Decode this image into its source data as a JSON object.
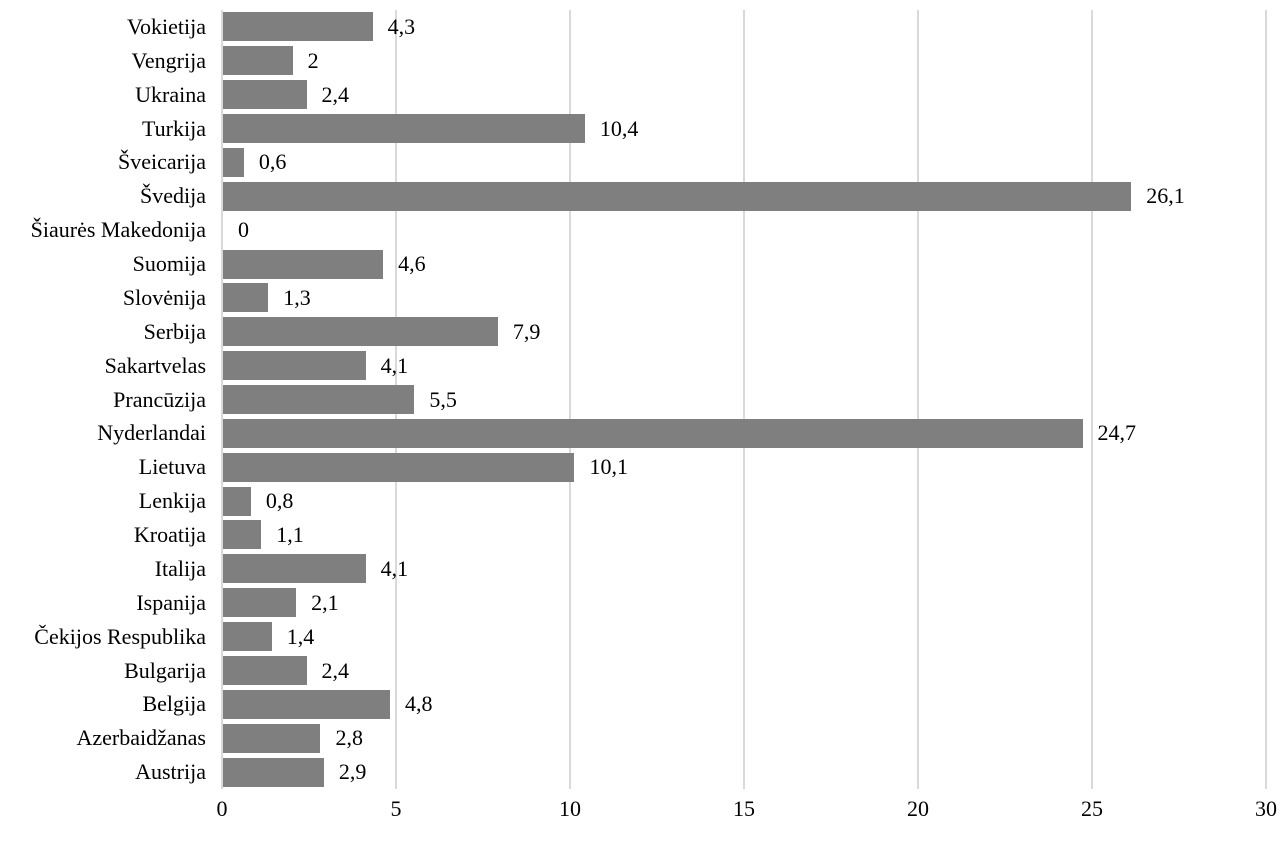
{
  "chart_data": {
    "type": "bar",
    "orientation": "horizontal",
    "title": "",
    "xlabel": "",
    "ylabel": "",
    "categories": [
      "Vokietija",
      "Vengrija",
      "Ukraina",
      "Turkija",
      "Šveicarija",
      "Švedija",
      "Šiaurės Makedonija",
      "Suomija",
      "Slovėnija",
      "Serbija",
      "Sakartvelas",
      "Prancūzija",
      "Nyderlandai",
      "Lietuva",
      "Lenkija",
      "Kroatija",
      "Italija",
      "Ispanija",
      "Čekijos Respublika",
      "Bulgarija",
      "Belgija",
      "Azerbaidžanas",
      "Austrija"
    ],
    "values": [
      4.3,
      2,
      2.4,
      10.4,
      0.6,
      26.1,
      0,
      4.6,
      1.3,
      7.9,
      4.1,
      5.5,
      24.7,
      10.1,
      0.8,
      1.1,
      4.1,
      2.1,
      1.4,
      2.4,
      4.8,
      2.8,
      2.9
    ],
    "value_labels": [
      "4,3",
      "2",
      "2,4",
      "10,4",
      "0,6",
      "26,1",
      "0",
      "4,6",
      "1,3",
      "7,9",
      "4,1",
      "5,5",
      "24,7",
      "10,1",
      "0,8",
      "1,1",
      "4,1",
      "2,1",
      "1,4",
      "2,4",
      "4,8",
      "2,8",
      "2,9"
    ],
    "xlim": [
      0,
      30
    ],
    "x_ticks": [
      0,
      5,
      10,
      15,
      20,
      25,
      30
    ],
    "x_tick_labels": [
      "0",
      "5",
      "10",
      "15",
      "20",
      "25",
      "30"
    ],
    "grid": true,
    "legend": false,
    "bar_color": "#7f7f7f",
    "gridline_color": "#d9d9d9",
    "axis_line_color": "#d9d9d9",
    "text_color": "#000000",
    "background_color": "#ffffff"
  }
}
